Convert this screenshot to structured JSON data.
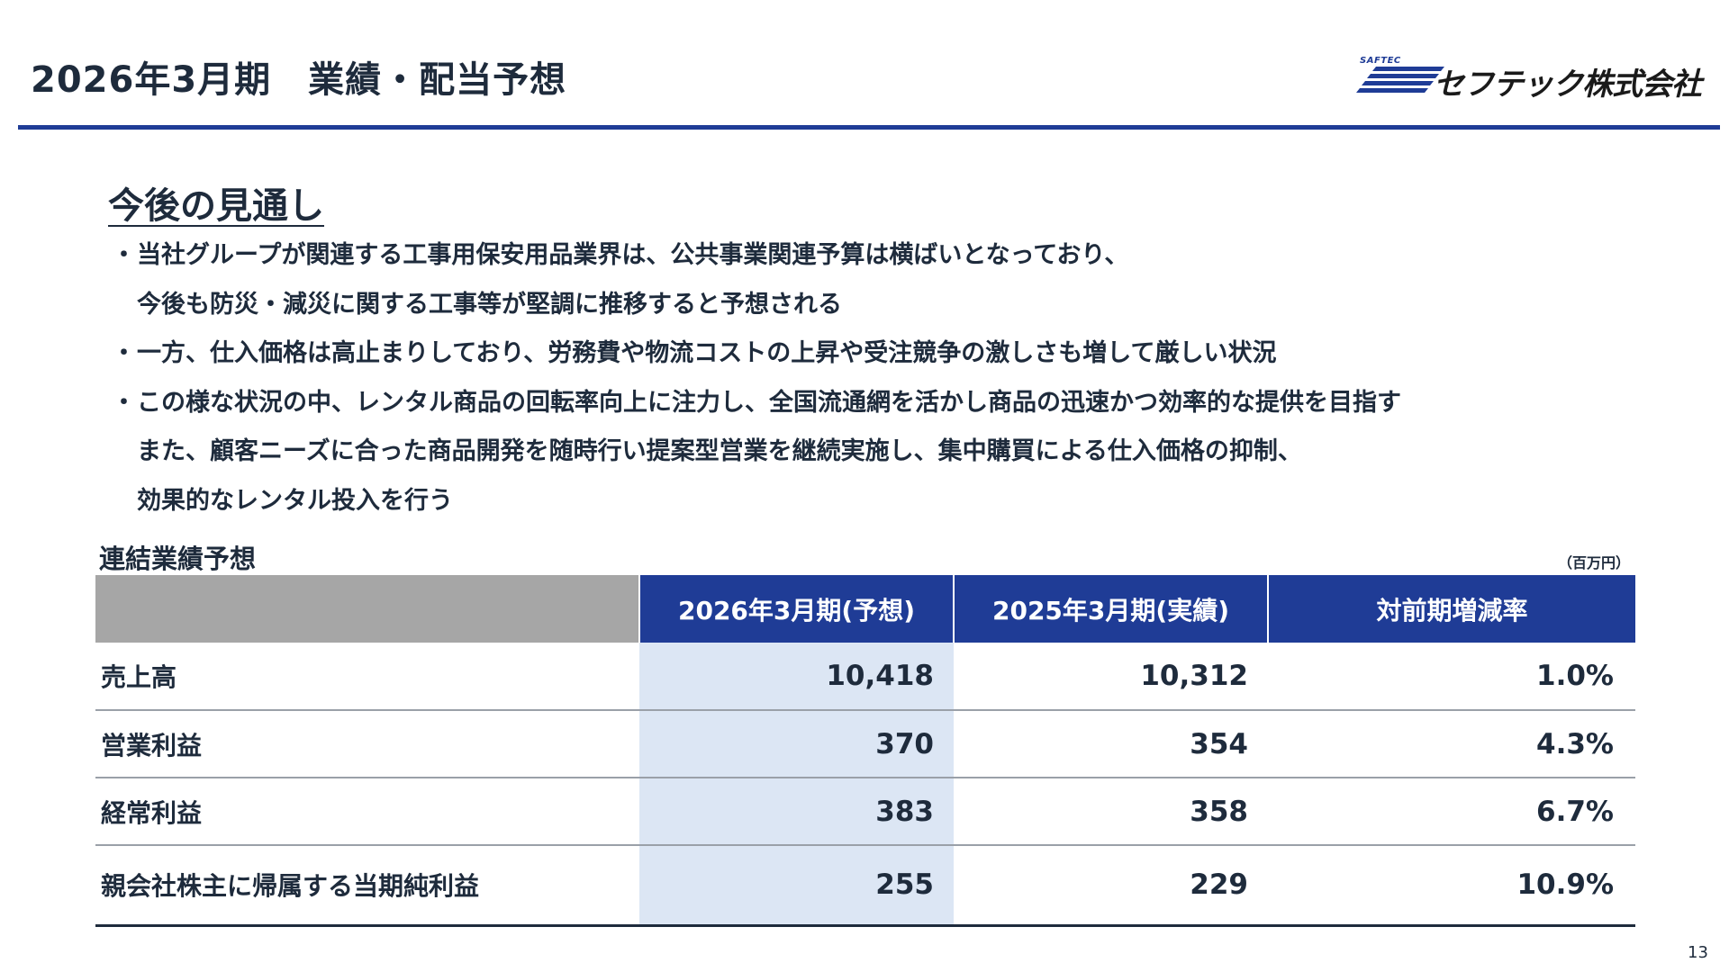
{
  "header": {
    "title": "2026年3月期　業績・配当予想",
    "logo": {
      "small_text": "SAFTEC",
      "company_name": "セフテック株式会社",
      "brand_color": "#1f3c96"
    }
  },
  "outlook": {
    "heading": "今後の見通し",
    "lines": [
      {
        "bullet": "・",
        "text": "当社グループが関連する工事用保安用品業界は、公共事業関連予算は横ばいとなっており、"
      },
      {
        "bullet": "",
        "text": "今後も防災・減災に関する工事等が堅調に推移すると予想される"
      },
      {
        "bullet": "・",
        "text": "一方、仕入価格は高止まりしており、労務費や物流コストの上昇や受注競争の激しさも増して厳しい状況"
      },
      {
        "bullet": "・",
        "text": "この様な状況の中、レンタル商品の回転率向上に注力し、全国流通網を活かし商品の迅速かつ効率的な提供を目指す"
      },
      {
        "bullet": "",
        "text": "また、顧客ニーズに合った商品開発を随時行い提案型営業を継続実施し、集中購買による仕入価格の抑制、"
      },
      {
        "bullet": "",
        "text": "効果的なレンタル投入を行う"
      }
    ]
  },
  "forecast_table": {
    "caption": "連結業績予想",
    "unit": "（百万円）",
    "headers": [
      "",
      "2026年3月期(予想)",
      "2025年3月期(実績)",
      "対前期増減率"
    ],
    "rows": [
      {
        "label": "売上高",
        "forecast": "10,418",
        "actual": "10,312",
        "rate": "1.0%"
      },
      {
        "label": "営業利益",
        "forecast": "370",
        "actual": "354",
        "rate": "4.3%"
      },
      {
        "label": "経常利益",
        "forecast": "383",
        "actual": "358",
        "rate": "6.7%"
      },
      {
        "label": "親会社株主に帰属する当期純利益",
        "forecast": "255",
        "actual": "229",
        "rate": "10.9%"
      }
    ],
    "colors": {
      "header_bg": "#1f3c96",
      "blank_header_bg": "#a6a6a6",
      "forecast_col_bg": "#dce6f4"
    }
  },
  "page_number": "13"
}
